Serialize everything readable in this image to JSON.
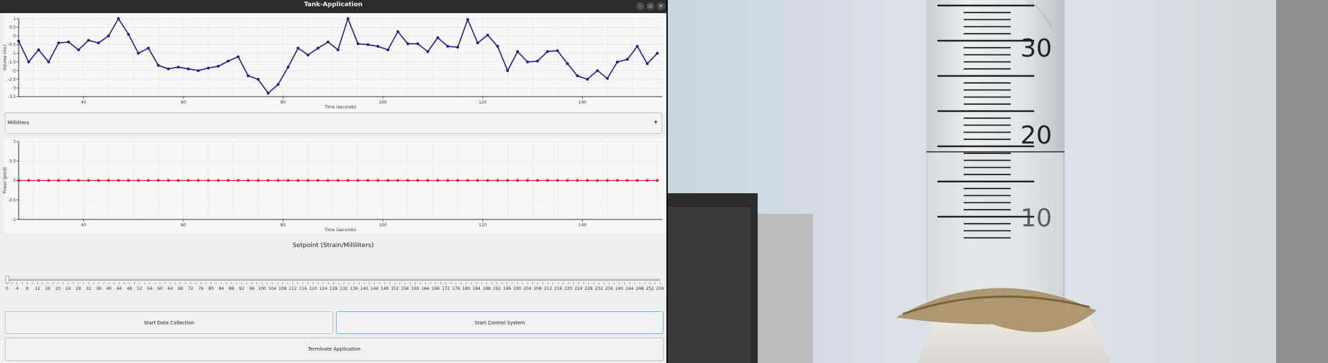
{
  "window": {
    "title": "Tank-Application",
    "controls": [
      "–",
      "▫",
      "×"
    ]
  },
  "volume_plot": {
    "ylabel": "Volume (mL)",
    "xlabel": "Time (seconds)",
    "y_ticks": [
      "1",
      "0.5",
      "0",
      "-0.5",
      "-1",
      "-1.5",
      "-2",
      "-2.5",
      "-3",
      "-3.5"
    ],
    "x_ticks": [
      "40",
      "60",
      "80",
      "100",
      "120",
      "140"
    ],
    "line_color": "#1b1b8f"
  },
  "units_select": {
    "value": "Milliliters"
  },
  "power_plot": {
    "ylabel": "Power (pmd)",
    "xlabel": "Time (seconds)",
    "y_ticks": [
      "1",
      "0.5",
      "0",
      "-0.5",
      "-1"
    ],
    "x_ticks": [
      "40",
      "60",
      "80",
      "100",
      "120",
      "140"
    ],
    "marker_color": "#d0202a"
  },
  "setpoint": {
    "label": "Setpoint (Strain/Milliliters)"
  },
  "slider": {
    "value": 0,
    "tick_labels": [
      "0",
      "4",
      "8",
      "12",
      "16",
      "20",
      "24",
      "28",
      "32",
      "36",
      "40",
      "44",
      "48",
      "52",
      "56",
      "60",
      "64",
      "68",
      "72",
      "76",
      "80",
      "84",
      "88",
      "92",
      "96",
      "100",
      "104",
      "108",
      "112",
      "116",
      "120",
      "124",
      "128",
      "132",
      "136",
      "140",
      "144",
      "148",
      "152",
      "156",
      "160",
      "164",
      "168",
      "172",
      "176",
      "180",
      "184",
      "188",
      "192",
      "196",
      "200",
      "204",
      "208",
      "212",
      "216",
      "220",
      "224",
      "228",
      "232",
      "236",
      "240",
      "244",
      "248",
      "252",
      "256"
    ]
  },
  "buttons": {
    "start_data": "Start Data Collection",
    "start_control": "Start Control System",
    "terminate": "Terminate Application"
  },
  "camera": {
    "cylinder_labels": [
      "30",
      "20",
      "10"
    ]
  },
  "chart_data": [
    {
      "type": "line",
      "xlabel": "Time (seconds)",
      "ylabel": "Volume (mL)",
      "xlim": [
        27,
        156
      ],
      "ylim": [
        -3.5,
        1
      ],
      "x": [
        27,
        29,
        31,
        33,
        35,
        37,
        39,
        41,
        43,
        45,
        47,
        49,
        51,
        53,
        55,
        57,
        59,
        61,
        63,
        65,
        67,
        69,
        71,
        73,
        75,
        77,
        79,
        81,
        83,
        85,
        87,
        89,
        91,
        93,
        95,
        97,
        99,
        101,
        103,
        105,
        107,
        109,
        111,
        113,
        115,
        117,
        119,
        121,
        123,
        125,
        127,
        129,
        131,
        133,
        135,
        137,
        139,
        141,
        143,
        145,
        147,
        149,
        151,
        153,
        155
      ],
      "y": [
        -0.3,
        -1.5,
        -0.8,
        -1.5,
        -0.4,
        -0.35,
        -0.8,
        -0.25,
        -0.4,
        0,
        1,
        0.1,
        -1,
        -0.7,
        -1.7,
        -1.9,
        -1.8,
        -1.9,
        -2.0,
        -1.85,
        -1.75,
        -1.45,
        -1.2,
        -2.3,
        -2.5,
        -3.3,
        -2.8,
        -1.8,
        -0.7,
        -1.1,
        -0.7,
        -0.35,
        -0.8,
        1,
        -0.45,
        -0.5,
        -0.6,
        -0.8,
        0.25,
        -0.45,
        -0.45,
        -0.9,
        -0.1,
        -0.6,
        -0.65,
        0.95,
        -0.4,
        0.05,
        -0.6,
        -2.0,
        -0.9,
        -1.5,
        -1.45,
        -0.9,
        -0.85,
        -1.6,
        -2.3,
        -2.5,
        -2.0,
        -2.45,
        -1.5,
        -1.35,
        -0.6,
        -1.6,
        -1.0
      ]
    },
    {
      "type": "scatter",
      "xlabel": "Time (seconds)",
      "ylabel": "Power (pmd)",
      "xlim": [
        27,
        156
      ],
      "ylim": [
        -1,
        1
      ],
      "x": [
        27,
        29,
        31,
        33,
        35,
        37,
        39,
        41,
        43,
        45,
        47,
        49,
        51,
        53,
        55,
        57,
        59,
        61,
        63,
        65,
        67,
        69,
        71,
        73,
        75,
        77,
        79,
        81,
        83,
        85,
        87,
        89,
        91,
        93,
        95,
        97,
        99,
        101,
        103,
        105,
        107,
        109,
        111,
        113,
        115,
        117,
        119,
        121,
        123,
        125,
        127,
        129,
        131,
        133,
        135,
        137,
        139,
        141,
        143,
        145,
        147,
        149,
        151,
        153,
        155
      ],
      "y": [
        0,
        0,
        0,
        0,
        0,
        0,
        0,
        0,
        0,
        0,
        0,
        0,
        0,
        0,
        0,
        0,
        0,
        0,
        0,
        0,
        0,
        0,
        0,
        0,
        0,
        0,
        0,
        0,
        0,
        0,
        0,
        0,
        0,
        0,
        0,
        0,
        0,
        0,
        0,
        0,
        0,
        0,
        0,
        0,
        0,
        0,
        0,
        0,
        0,
        0,
        0,
        0,
        0,
        0,
        0,
        0,
        0,
        0,
        0,
        0,
        0,
        0,
        0,
        0,
        0
      ]
    }
  ]
}
